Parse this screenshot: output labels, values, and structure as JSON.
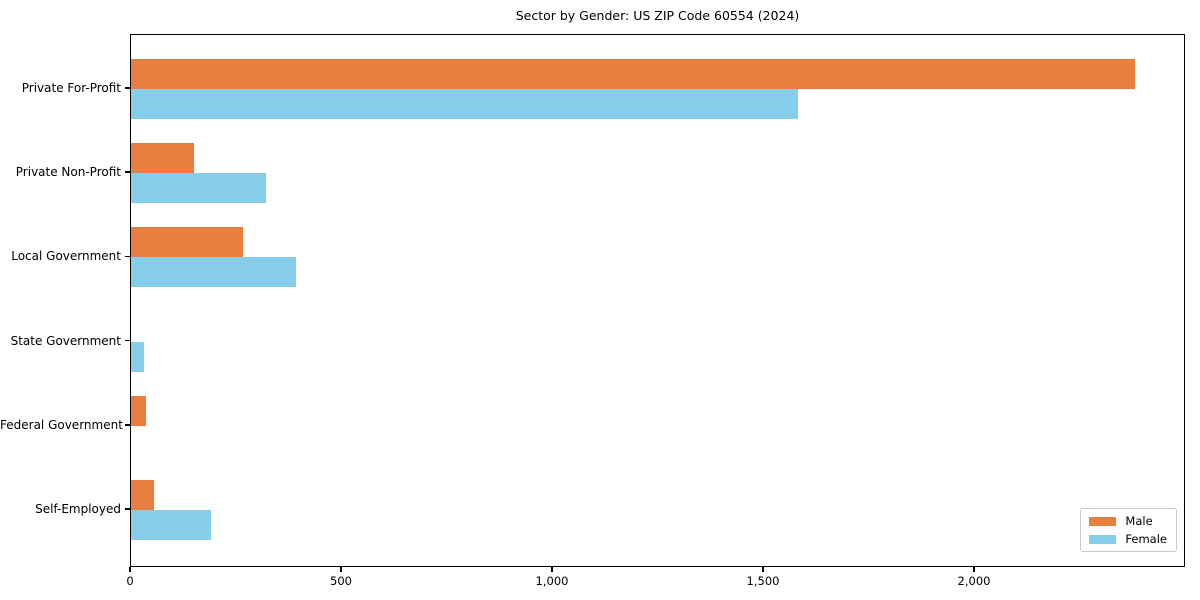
{
  "chart_data": {
    "type": "bar",
    "orientation": "horizontal",
    "title": "Sector by Gender: US ZIP Code 60554 (2024)",
    "categories": [
      "Private For-Profit",
      "Private Non-Profit",
      "Local Government",
      "State Government",
      "Federal Government",
      "Self-Employed"
    ],
    "series": [
      {
        "name": "Male",
        "color": "#e87f3e",
        "values": [
          2380,
          150,
          265,
          0,
          35,
          55
        ]
      },
      {
        "name": "Female",
        "color": "#87ceeb",
        "values": [
          1580,
          320,
          390,
          30,
          0,
          190
        ]
      }
    ],
    "xlabel": "",
    "ylabel": "",
    "xlim": [
      0,
      2500
    ],
    "xticks": [
      {
        "value": 0,
        "label": "0"
      },
      {
        "value": 500,
        "label": "500"
      },
      {
        "value": 1000,
        "label": "1,000"
      },
      {
        "value": 1500,
        "label": "1,500"
      },
      {
        "value": 2000,
        "label": "2,000"
      }
    ],
    "grid": false,
    "legend": {
      "position": "lower right"
    }
  }
}
